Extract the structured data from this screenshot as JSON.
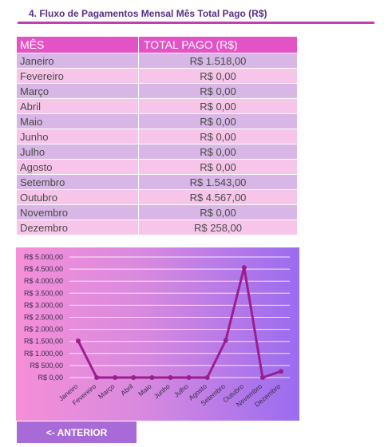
{
  "section_title": "4. Fluxo de Pagamentos Mensal Mês Total Pago (R$)",
  "table": {
    "headers": {
      "month": "MÊS",
      "total": "TOTAL PAGO (R$)"
    },
    "rows": [
      {
        "month": "Janeiro",
        "total": "R$ 1.518,00"
      },
      {
        "month": "Fevereiro",
        "total": "R$ 0,00"
      },
      {
        "month": "Março",
        "total": "R$ 0,00"
      },
      {
        "month": "Abril",
        "total": "R$ 0,00"
      },
      {
        "month": "Maio",
        "total": "R$ 0,00"
      },
      {
        "month": "Junho",
        "total": "R$ 0,00"
      },
      {
        "month": "Julho",
        "total": "R$ 0,00"
      },
      {
        "month": "Agosto",
        "total": "R$ 0,00"
      },
      {
        "month": "Setembro",
        "total": "R$ 1.543,00"
      },
      {
        "month": "Outubro",
        "total": "R$ 4.567,00"
      },
      {
        "month": "Novembro",
        "total": "R$ 0,00"
      },
      {
        "month": "Dezembro",
        "total": "R$ 258,00"
      }
    ]
  },
  "chart_data": {
    "type": "line",
    "categories": [
      "Janeiro",
      "Fevereiro",
      "Março",
      "Abril",
      "Maio",
      "Junho",
      "Julho",
      "Agosto",
      "Setembro",
      "Outubro",
      "Novembro",
      "Dezembro"
    ],
    "series": [
      {
        "values": [
          1518,
          0,
          0,
          0,
          0,
          0,
          0,
          0,
          1543,
          4567,
          0,
          258
        ]
      }
    ],
    "ylim": [
      0,
      5000
    ],
    "yticks": [
      "R$ 0,00",
      "R$ 500,00",
      "R$ 1.000,00",
      "R$ 1.500,00",
      "R$ 2.000,00",
      "R$ 2.500,00",
      "R$ 3.000,00",
      "R$ 3.500,00",
      "R$ 4.000,00",
      "R$ 4.500,00",
      "R$ 5.000,00"
    ],
    "grid": true,
    "line_color": "#9b1e8e"
  },
  "buttons": {
    "back_label": "<- ANTERIOR"
  }
}
